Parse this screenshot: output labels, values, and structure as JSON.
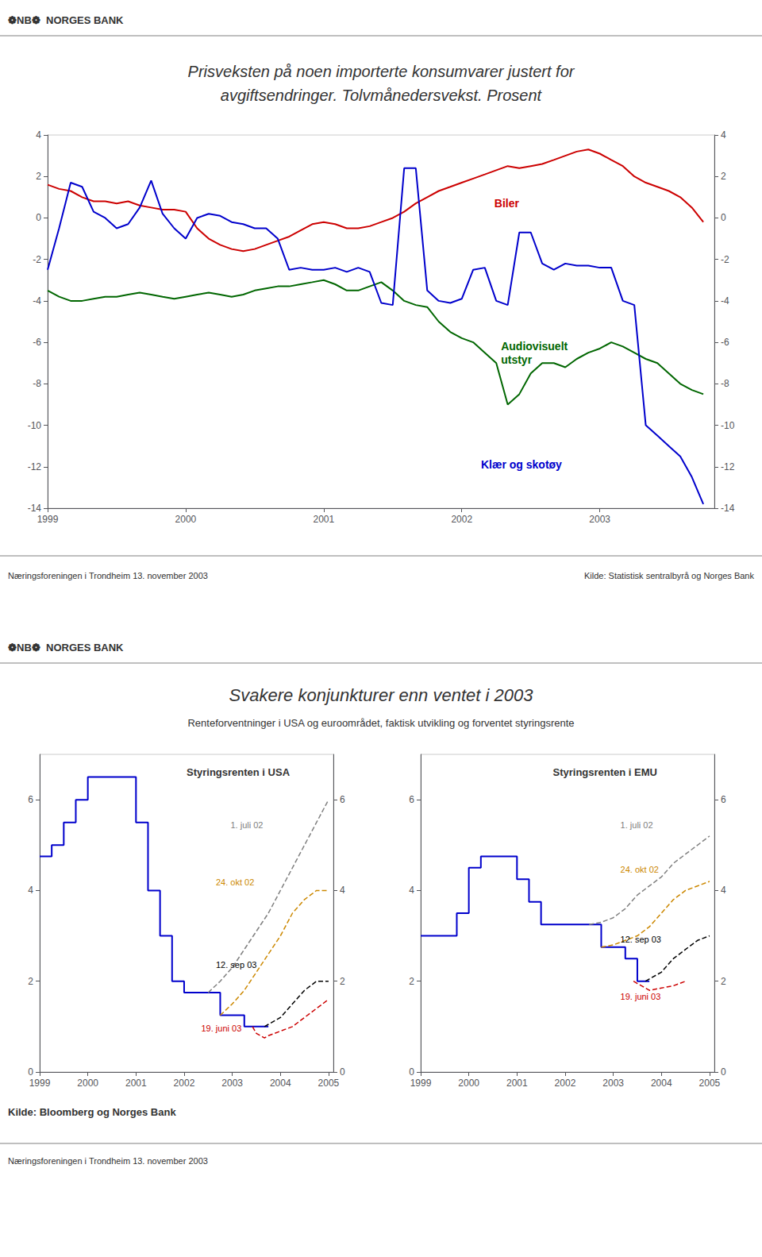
{
  "chart_data": [
    {
      "type": "line",
      "title": "Prisveksten på noen importerte konsumvarer justert for\navgiftsendringer. Tolvmånedersvekst. Prosent",
      "annotations": [
        "❁NB❁  NORGES BANK",
        "Næringsforeningen i Trondheim 13. november 2003",
        "Kilde: Statistisk sentralbyrå og Norges Bank"
      ],
      "x": [
        1999.0,
        1999.083,
        1999.167,
        1999.25,
        1999.333,
        1999.417,
        1999.5,
        1999.583,
        1999.667,
        1999.75,
        1999.833,
        1999.917,
        2000.0,
        2000.083,
        2000.167,
        2000.25,
        2000.333,
        2000.417,
        2000.5,
        2000.583,
        2000.667,
        2000.75,
        2000.833,
        2000.917,
        2001.0,
        2001.083,
        2001.167,
        2001.25,
        2001.333,
        2001.417,
        2001.5,
        2001.583,
        2001.667,
        2001.75,
        2001.833,
        2001.917,
        2002.0,
        2002.083,
        2002.167,
        2002.25,
        2002.333,
        2002.417,
        2002.5,
        2002.583,
        2002.667,
        2002.75,
        2002.833,
        2002.917,
        2003.0,
        2003.083,
        2003.167,
        2003.25,
        2003.333,
        2003.417,
        2003.5,
        2003.583,
        2003.667,
        2003.75
      ],
      "series": [
        {
          "name": "Biler",
          "color": "#cc0000",
          "values": [
            1.6,
            1.4,
            1.3,
            1.0,
            0.8,
            0.8,
            0.7,
            0.8,
            0.6,
            0.5,
            0.4,
            0.4,
            0.3,
            -0.5,
            -1.0,
            -1.3,
            -1.5,
            -1.6,
            -1.5,
            -1.3,
            -1.1,
            -0.9,
            -0.6,
            -0.3,
            -0.2,
            -0.3,
            -0.5,
            -0.5,
            -0.4,
            -0.2,
            0.0,
            0.3,
            0.7,
            1.0,
            1.3,
            1.5,
            1.7,
            1.9,
            2.1,
            2.3,
            2.5,
            2.4,
            2.5,
            2.6,
            2.8,
            3.0,
            3.2,
            3.3,
            3.1,
            2.8,
            2.5,
            2.0,
            1.7,
            1.5,
            1.3,
            1.0,
            0.5,
            -0.2
          ]
        },
        {
          "name": "Audiovisuelt\nutstyr",
          "color": "#006600",
          "values": [
            -3.5,
            -3.8,
            -4.0,
            -4.0,
            -3.9,
            -3.8,
            -3.8,
            -3.7,
            -3.6,
            -3.7,
            -3.8,
            -3.9,
            -3.8,
            -3.7,
            -3.6,
            -3.7,
            -3.8,
            -3.7,
            -3.5,
            -3.4,
            -3.3,
            -3.3,
            -3.2,
            -3.1,
            -3.0,
            -3.2,
            -3.5,
            -3.5,
            -3.3,
            -3.1,
            -3.5,
            -4.0,
            -4.2,
            -4.3,
            -5.0,
            -5.5,
            -5.8,
            -6.0,
            -6.5,
            -7.0,
            -9.0,
            -8.5,
            -7.5,
            -7.0,
            -7.0,
            -7.2,
            -6.8,
            -6.5,
            -6.3,
            -6.0,
            -6.2,
            -6.5,
            -6.8,
            -7.0,
            -7.5,
            -8.0,
            -8.3,
            -8.5
          ]
        },
        {
          "name": "Klær og skotøy",
          "color": "#0000cc",
          "values": [
            -2.5,
            -0.5,
            1.7,
            1.5,
            0.3,
            0.0,
            -0.5,
            -0.3,
            0.5,
            1.8,
            0.2,
            -0.5,
            -1.0,
            0.0,
            0.2,
            0.1,
            -0.2,
            -0.3,
            -0.5,
            -0.5,
            -1.0,
            -2.5,
            -2.4,
            -2.5,
            -2.5,
            -2.4,
            -2.6,
            -2.4,
            -2.6,
            -4.1,
            -4.2,
            2.4,
            2.4,
            -3.5,
            -4.0,
            -4.1,
            -3.9,
            -2.5,
            -2.4,
            -4.0,
            -4.2,
            -0.7,
            -0.7,
            -2.2,
            -2.5,
            -2.2,
            -2.3,
            -2.3,
            -2.4,
            -2.4,
            -4.0,
            -4.2,
            -10.0,
            -10.5,
            -11.0,
            -11.5,
            -12.5,
            -13.8
          ]
        }
      ],
      "xlim": [
        1999,
        2003.83
      ],
      "xticks": [
        1999,
        2000,
        2001,
        2002,
        2003
      ],
      "ylim": [
        -14,
        4
      ],
      "yticks": [
        4,
        2,
        0,
        -2,
        -4,
        -6,
        -8,
        -10,
        -12,
        -14
      ],
      "y2lim": [
        -14,
        4
      ],
      "y2ticks": [
        4,
        2,
        0,
        -2,
        -4,
        -6,
        -8,
        -10,
        -12,
        -14
      ],
      "grid": false
    },
    {
      "type": "line",
      "title": "Svakere konjunkturer enn ventet i 2003",
      "subtitle": "Renteforventninger i USA og euroområdet, faktisk utvikling og forventet styringsrente",
      "annotations": [
        "❁NB❁  NORGES BANK",
        "Styringsrenten i USA",
        "Kilde: Bloomberg og Norges Bank",
        "Næringsforeningen i Trondheim 13. november 2003"
      ],
      "series": [
        {
          "type": "step",
          "color": "#0000cc",
          "line_style": "solid",
          "x": [
            1999.0,
            1999.25,
            1999.5,
            1999.75,
            2000.0,
            2000.25,
            2000.5,
            2000.75,
            2001.0,
            2001.25,
            2001.5,
            2001.75,
            2002.0,
            2002.25,
            2002.5,
            2002.75,
            2003.0,
            2003.25,
            2003.5,
            2003.75
          ],
          "values": [
            4.75,
            5.0,
            5.5,
            6.0,
            6.5,
            6.5,
            6.5,
            6.5,
            5.5,
            4.0,
            3.0,
            2.0,
            1.75,
            1.75,
            1.75,
            1.25,
            1.25,
            1.0,
            1.0,
            1.0
          ]
        },
        {
          "name": "1. juli 02",
          "color": "#808080",
          "line_style": "dashed",
          "x": [
            2002.5,
            2002.75,
            2003.0,
            2003.25,
            2003.5,
            2003.75,
            2004.0,
            2004.25,
            2004.5,
            2004.75,
            2005.0
          ],
          "values": [
            1.75,
            2.0,
            2.3,
            2.7,
            3.1,
            3.5,
            4.0,
            4.5,
            5.0,
            5.5,
            6.0
          ]
        },
        {
          "name": "24. okt 02",
          "color": "#cc8800",
          "line_style": "dashed",
          "x": [
            2002.75,
            2003.0,
            2003.25,
            2003.5,
            2003.75,
            2004.0,
            2004.25,
            2004.5,
            2004.75,
            2005.0
          ],
          "values": [
            1.25,
            1.5,
            1.8,
            2.2,
            2.6,
            3.0,
            3.5,
            3.8,
            4.0,
            4.0
          ]
        },
        {
          "name": "12. sep 03",
          "color": "#000000",
          "line_style": "dashed",
          "x": [
            2003.67,
            2003.75,
            2004.0,
            2004.25,
            2004.5,
            2004.75,
            2005.0
          ],
          "values": [
            1.0,
            1.05,
            1.2,
            1.5,
            1.8,
            2.0,
            2.0
          ]
        },
        {
          "name": "19. juni 03",
          "color": "#cc0000",
          "line_style": "dashed",
          "x": [
            2003.42,
            2003.5,
            2003.67,
            2003.75,
            2004.0,
            2004.25,
            2004.5,
            2004.75,
            2005.0
          ],
          "values": [
            1.0,
            0.85,
            0.75,
            0.8,
            0.9,
            1.0,
            1.2,
            1.4,
            1.6
          ]
        }
      ],
      "xlim": [
        1999,
        2005.1
      ],
      "xticks": [
        1999,
        2000,
        2001,
        2002,
        2003,
        2004,
        2005
      ],
      "ylim": [
        0,
        7
      ],
      "yticks": [
        0,
        2,
        4,
        6
      ],
      "y2lim": [
        0,
        7
      ],
      "y2ticks": [
        0,
        2,
        4,
        6
      ],
      "grid": false
    },
    {
      "type": "line",
      "annotations": [
        "Styringsrenten i EMU"
      ],
      "series": [
        {
          "type": "step",
          "color": "#0000cc",
          "line_style": "solid",
          "x": [
            1999.0,
            1999.25,
            1999.5,
            1999.75,
            2000.0,
            2000.25,
            2000.5,
            2000.75,
            2001.0,
            2001.25,
            2001.5,
            2001.75,
            2002.0,
            2002.25,
            2002.5,
            2002.75,
            2003.0,
            2003.25,
            2003.5,
            2003.75
          ],
          "values": [
            3.0,
            3.0,
            3.0,
            3.5,
            4.5,
            4.75,
            4.75,
            4.75,
            4.25,
            3.75,
            3.25,
            3.25,
            3.25,
            3.25,
            3.25,
            2.75,
            2.75,
            2.5,
            2.0,
            2.0
          ]
        },
        {
          "name": "1. juli 02",
          "color": "#808080",
          "line_style": "dashed",
          "x": [
            2002.5,
            2002.75,
            2003.0,
            2003.25,
            2003.5,
            2003.75,
            2004.0,
            2004.25,
            2004.5,
            2004.75,
            2005.0
          ],
          "values": [
            3.25,
            3.3,
            3.4,
            3.6,
            3.9,
            4.1,
            4.3,
            4.6,
            4.8,
            5.0,
            5.2
          ]
        },
        {
          "name": "24. okt 02",
          "color": "#cc8800",
          "line_style": "dashed",
          "x": [
            2002.75,
            2003.0,
            2003.25,
            2003.5,
            2003.75,
            2004.0,
            2004.25,
            2004.5,
            2004.75,
            2005.0
          ],
          "values": [
            2.75,
            2.8,
            2.9,
            3.0,
            3.2,
            3.5,
            3.8,
            4.0,
            4.1,
            4.2
          ]
        },
        {
          "name": "12. sep 03",
          "color": "#000000",
          "line_style": "dashed",
          "x": [
            2003.67,
            2003.75,
            2004.0,
            2004.25,
            2004.5,
            2004.75,
            2005.0
          ],
          "values": [
            2.0,
            2.05,
            2.2,
            2.5,
            2.7,
            2.9,
            3.0
          ]
        },
        {
          "name": "19. juni 03",
          "color": "#cc0000",
          "line_style": "dashed",
          "x": [
            2003.42,
            2003.5,
            2003.67,
            2003.75,
            2004.0,
            2004.25,
            2004.5
          ],
          "values": [
            2.0,
            1.95,
            1.85,
            1.8,
            1.85,
            1.9,
            2.0
          ]
        }
      ],
      "xlim": [
        1999,
        2005.1
      ],
      "xticks": [
        1999,
        2000,
        2001,
        2002,
        2003,
        2004,
        2005
      ],
      "ylim": [
        0,
        7
      ],
      "yticks": [
        0,
        2,
        4,
        6
      ],
      "y2lim": [
        0,
        7
      ],
      "y2ticks": [
        0,
        2,
        4,
        6
      ],
      "grid": false
    }
  ]
}
